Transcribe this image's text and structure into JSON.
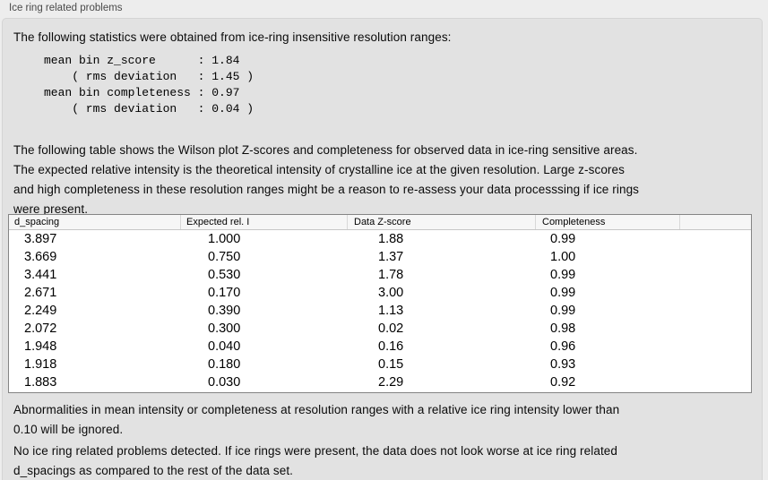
{
  "panel": {
    "title": "Ice ring related problems"
  },
  "intro": {
    "text": "The following statistics were obtained from ice-ring insensitive resolution ranges:"
  },
  "stats_block": {
    "text": "mean bin z_score      : 1.84\n    ( rms deviation   : 1.45 )\nmean bin completeness : 0.97\n    ( rms deviation   : 0.04 )",
    "mean_bin_z_score": "1.84",
    "z_score_rms_deviation": "1.45",
    "mean_bin_completeness": "0.97",
    "completeness_rms_deviation": "0.04"
  },
  "description": {
    "text": "The following table shows the Wilson plot Z-scores and completeness for observed data in ice-ring sensitive areas.\nThe expected relative intensity is the theoretical intensity of crystalline ice at the given resolution. Large z-scores\nand high completeness in these resolution ranges might be a reason to re-assess your data processsing if ice rings\nwere present."
  },
  "table": {
    "columns": [
      "d_spacing",
      "Expected rel. I",
      "Data Z-score",
      "Completeness"
    ],
    "rows": [
      [
        "3.897",
        "1.000",
        "1.88",
        "0.99"
      ],
      [
        "3.669",
        "0.750",
        "1.37",
        "1.00"
      ],
      [
        "3.441",
        "0.530",
        "1.78",
        "0.99"
      ],
      [
        "2.671",
        "0.170",
        "3.00",
        "0.99"
      ],
      [
        "2.249",
        "0.390",
        "1.13",
        "0.99"
      ],
      [
        "2.072",
        "0.300",
        "0.02",
        "0.98"
      ],
      [
        "1.948",
        "0.040",
        "0.16",
        "0.96"
      ],
      [
        "1.918",
        "0.180",
        "0.15",
        "0.93"
      ],
      [
        "1.883",
        "0.030",
        "2.29",
        "0.92"
      ]
    ]
  },
  "notes": {
    "ignore_note": "Abnormalities in mean intensity or completeness at resolution ranges with a relative ice ring intensity lower than\n0.10 will be ignored.",
    "conclusion": "No ice ring related problems detected. If ice rings were present, the data does not look worse at ice ring related\nd_spacings as compared to the rest of the data set."
  },
  "colors": {
    "page_background": "#ededed",
    "panel_background": "#e2e2e2",
    "table_border": "#848484",
    "table_header_background": "#f6f6f6"
  }
}
